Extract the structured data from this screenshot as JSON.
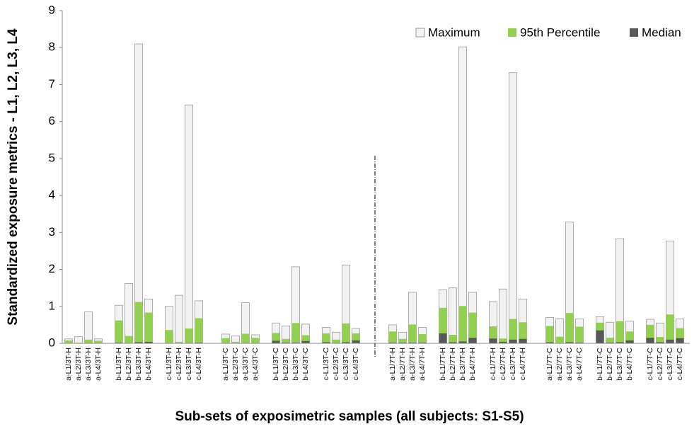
{
  "chart_data": {
    "type": "overlaid-bar",
    "title_y": "Standardized exposure metrics - L1, L2, L3, L4",
    "title_x": "Sub-sets of exposimetric samples (all subjects: S1-S5)",
    "categories": [
      "a-L1/3T-H",
      "a-L2/3T-H",
      "a-L3/3T-H",
      "a-L4/3T-H",
      "b-L1/3T-H",
      "b-L2/3T-H",
      "b-L3/3T-H",
      "b-L4/3T-H",
      "c-L1/3T-H",
      "c-L2/3T-H",
      "c-L3/3T-H",
      "c-L4/3T-H",
      "a-L1/3T-C",
      "a-L2/3T-C",
      "a-L3/3T-C",
      "a-L4/3T-C",
      "b-L1/3T-C",
      "b-L2/3T-C",
      "b-L3/3T-C",
      "b-L4/3T-C",
      "c-L1/3T-C",
      "c-L2/3T-C",
      "c-L3/3T-C",
      "c-L4/3T-C",
      "a-L1/7T-H",
      "a-L2/7T-H",
      "a-L3/7T-H",
      "a-L4/7T-H",
      "b-L1/7T-H",
      "b-L2/7T-H",
      "b-L3/7T-H",
      "b-L4/7T-H",
      "c-L1/7T-H",
      "c-L2/7T-H",
      "c-L3/7T-H",
      "c-L4/7T-H",
      "a-L1/7T-C",
      "a-L2/7T-C",
      "a-L3/7T-C",
      "a-L4/7T-C",
      "b-L1/7T-C",
      "b-L2/7T-C",
      "b-L3/7T-C",
      "b-L4/7T-C",
      "c-L1/7T-C",
      "c-L2/7T-C",
      "c-L3/7T-C",
      "c-L4/7T-C"
    ],
    "series": [
      {
        "name": "Maximum",
        "color": "#f2f2f2",
        "values": [
          0.12,
          0.18,
          0.85,
          0.12,
          1.03,
          1.62,
          8.1,
          1.2,
          1.0,
          1.3,
          6.45,
          1.15,
          0.25,
          0.2,
          1.1,
          0.23,
          0.55,
          0.47,
          2.07,
          0.52,
          0.43,
          0.3,
          2.12,
          0.4,
          0.5,
          0.3,
          1.38,
          0.43,
          1.45,
          1.5,
          8.02,
          1.38,
          1.13,
          1.47,
          7.32,
          1.2,
          0.7,
          0.67,
          3.28,
          0.66,
          0.72,
          0.57,
          2.83,
          0.6,
          0.65,
          0.55,
          2.77,
          0.66
        ]
      },
      {
        "name": "95th Percentile",
        "color": "#92d050",
        "values": [
          0.08,
          0.02,
          0.1,
          0.07,
          0.62,
          0.2,
          1.12,
          0.83,
          0.36,
          0.04,
          0.4,
          0.68,
          0.14,
          0.04,
          0.26,
          0.15,
          0.28,
          0.12,
          0.55,
          0.22,
          0.27,
          0.1,
          0.54,
          0.27,
          0.32,
          0.12,
          0.51,
          0.25,
          0.96,
          0.23,
          1.01,
          0.83,
          0.46,
          0.13,
          0.66,
          0.57,
          0.47,
          0.18,
          0.82,
          0.45,
          0.56,
          0.15,
          0.6,
          0.32,
          0.5,
          0.17,
          0.78,
          0.41
        ]
      },
      {
        "name": "Median",
        "color": "#595959",
        "values": [
          0.01,
          0.01,
          0.01,
          0.01,
          0.02,
          0.01,
          0.03,
          0.04,
          0.01,
          0.01,
          0.01,
          0.02,
          0.01,
          0.01,
          0.01,
          0.01,
          0.07,
          0.02,
          0.02,
          0.06,
          0.03,
          0.01,
          0.03,
          0.08,
          0.02,
          0.02,
          0.02,
          0.02,
          0.27,
          0.03,
          0.05,
          0.15,
          0.13,
          0.04,
          0.1,
          0.12,
          0.03,
          0.01,
          0.03,
          0.02,
          0.35,
          0.02,
          0.03,
          0.08,
          0.15,
          0.03,
          0.1,
          0.14
        ]
      }
    ],
    "ylim": [
      0,
      9
    ],
    "yticks": [
      0,
      1,
      2,
      3,
      4,
      5,
      6,
      7,
      8,
      9
    ],
    "grid": false,
    "legend": "top-right"
  }
}
